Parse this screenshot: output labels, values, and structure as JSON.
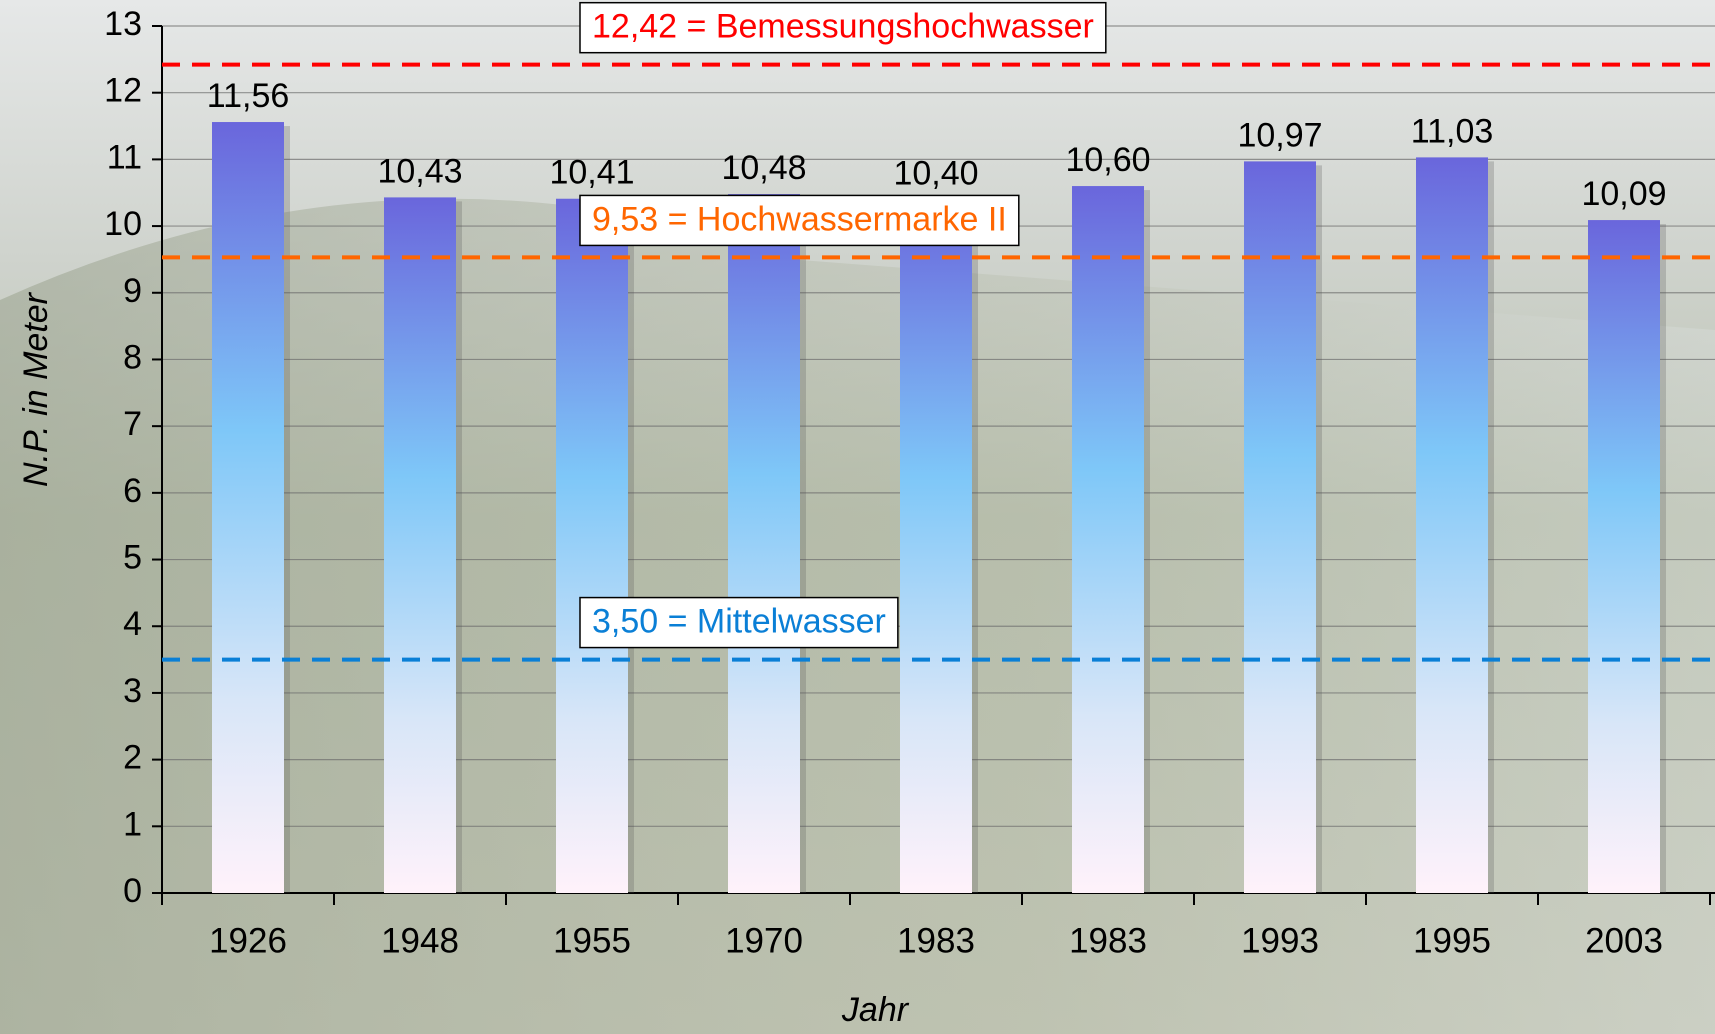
{
  "chart_data": {
    "type": "bar",
    "x_label": "Jahr",
    "y_label": "N.P. in Meter",
    "categories": [
      "1926",
      "1948",
      "1955",
      "1970",
      "1983",
      "1983",
      "1993",
      "1995",
      "2003"
    ],
    "values": [
      11.56,
      10.43,
      10.41,
      10.48,
      10.4,
      10.6,
      10.97,
      11.03,
      10.09
    ],
    "value_labels": [
      "11,56",
      "10,43",
      "10,41",
      "10,48",
      "10,40",
      "10,60",
      "10,97",
      "11,03",
      "10,09"
    ],
    "ylim": [
      0,
      13
    ],
    "yticks": [
      0,
      1,
      2,
      3,
      4,
      5,
      6,
      7,
      8,
      9,
      10,
      11,
      12,
      13
    ],
    "grid": true,
    "reference_lines": [
      {
        "value": 12.42,
        "label": "12,42 = Bemessungshochwasser",
        "color": "#ff0000"
      },
      {
        "value": 9.53,
        "label": "9,53 = Hochwassermarke II",
        "color": "#ff6600"
      },
      {
        "value": 3.5,
        "label": "3,50 = Mittelwasser",
        "color": "#0a7fd6"
      }
    ]
  }
}
